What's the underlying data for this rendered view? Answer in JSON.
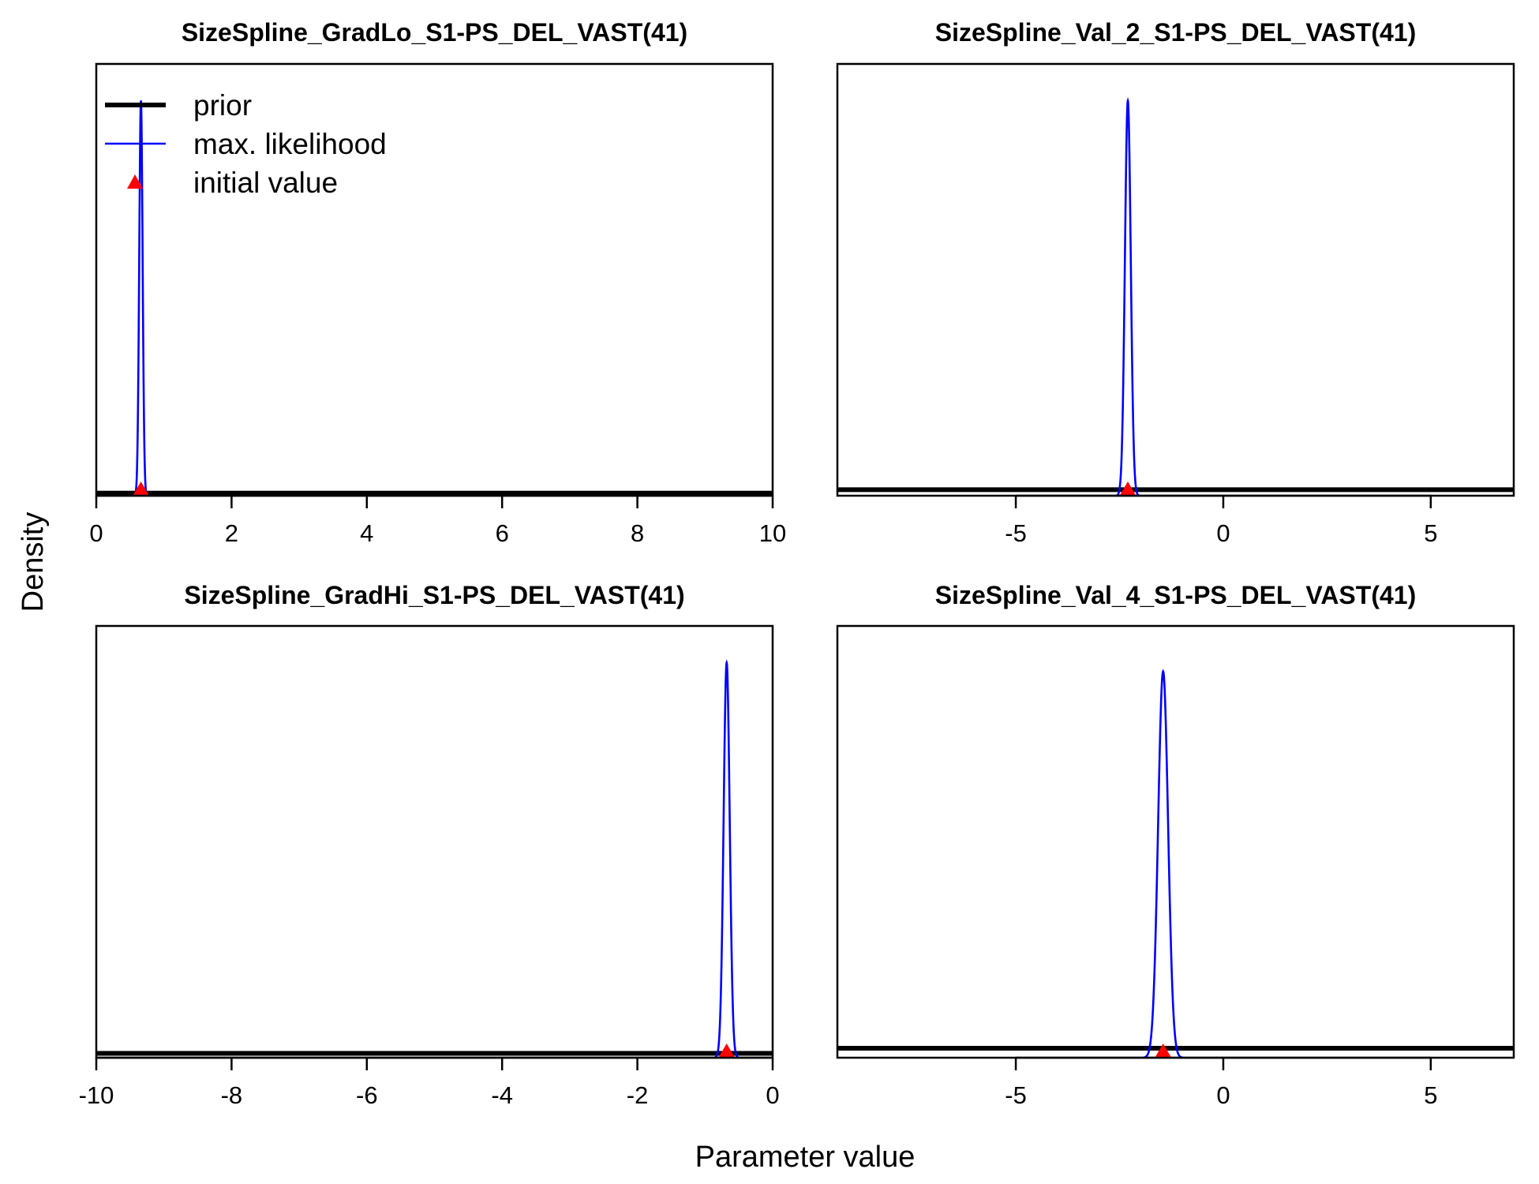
{
  "figure": {
    "ylabel": "Density",
    "xlabel": "Parameter value"
  },
  "legend": {
    "entries": [
      {
        "label": "prior",
        "color": "#000000",
        "kind": "thick-line"
      },
      {
        "label": "max. likelihood",
        "color": "#0000FF",
        "kind": "line"
      },
      {
        "label": "initial value",
        "color": "#FF0000",
        "kind": "triangle"
      }
    ],
    "position": "top-left of first panel"
  },
  "colors": {
    "prior": "#000000",
    "max_likelihood": "#0000FF",
    "initial_value": "#FF0000"
  },
  "chart_data": [
    {
      "type": "line",
      "title": "SizeSpline_GradLo_S1-PS_DEL_VAST(41)",
      "xlim": [
        0,
        10
      ],
      "x_ticks": [
        0,
        2,
        4,
        6,
        8,
        10
      ],
      "x_tick_labels": [
        "0",
        "2",
        "4",
        "6",
        "8",
        "10"
      ],
      "prior_level": 0.006,
      "max_likelihood": {
        "mean": 0.66,
        "sd": 0.025,
        "peak_rel": 0.915
      },
      "initial_value": 0.66
    },
    {
      "type": "line",
      "title": "SizeSpline_Val_2_S1-PS_DEL_VAST(41)",
      "xlim": [
        -9.3,
        7.0
      ],
      "x_ticks": [
        -5,
        0,
        5
      ],
      "x_tick_labels": [
        "-5",
        "0",
        "5"
      ],
      "prior_level": 0.014,
      "max_likelihood": {
        "mean": -2.3,
        "sd": 0.07,
        "peak_rel": 0.915
      },
      "initial_value": -2.3
    },
    {
      "type": "line",
      "title": "SizeSpline_GradHi_S1-PS_DEL_VAST(41)",
      "xlim": [
        -10,
        0
      ],
      "x_ticks": [
        -10,
        -8,
        -6,
        -4,
        -2,
        0
      ],
      "x_tick_labels": [
        "-10",
        "-8",
        "-6",
        "-4",
        "-2",
        "0"
      ],
      "prior_level": 0.01,
      "max_likelihood": {
        "mean": -0.68,
        "sd": 0.045,
        "peak_rel": 0.915
      },
      "initial_value": -0.68
    },
    {
      "type": "line",
      "title": "SizeSpline_Val_4_S1-PS_DEL_VAST(41)",
      "xlim": [
        -9.3,
        7.0
      ],
      "x_ticks": [
        -5,
        0,
        5
      ],
      "x_tick_labels": [
        "-5",
        "0",
        "5"
      ],
      "prior_level": 0.022,
      "max_likelihood": {
        "mean": -1.45,
        "sd": 0.12,
        "peak_rel": 0.895
      },
      "initial_value": -1.45
    }
  ]
}
